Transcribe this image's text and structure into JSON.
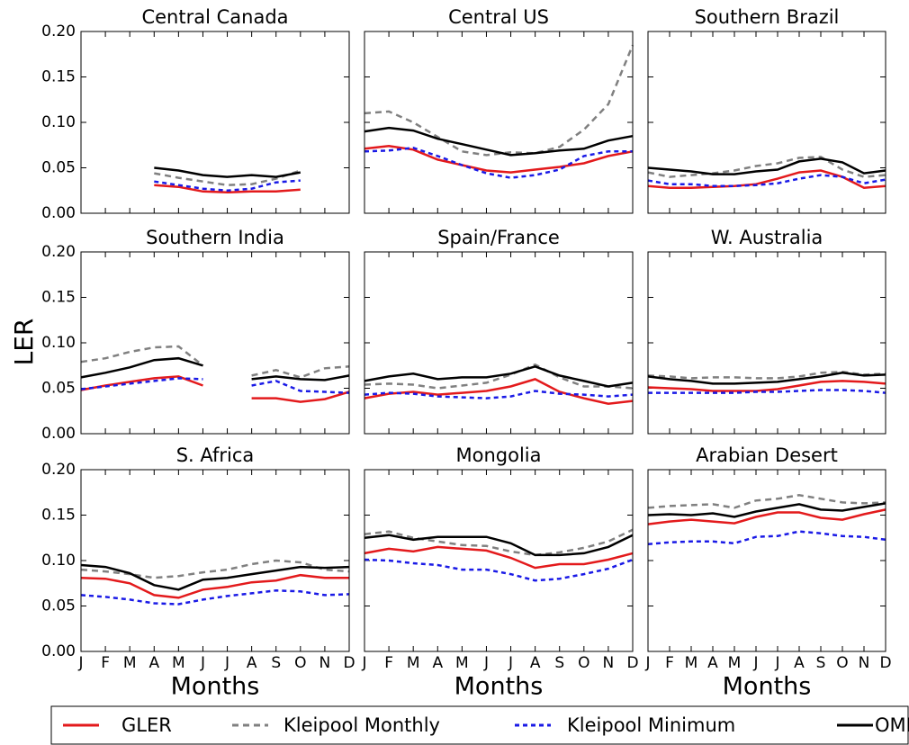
{
  "ylabel": "LER",
  "legend": [
    {
      "name": "GLER",
      "color": "#e31a1c",
      "style": "solid"
    },
    {
      "name": "Kleipool Monthly",
      "color": "#808080",
      "style": "dashed"
    },
    {
      "name": "Kleipool Minimum",
      "color": "#1a1ae6",
      "style": "dotted"
    },
    {
      "name": "OMI",
      "color": "#000000",
      "style": "solid"
    }
  ],
  "chart_data": [
    {
      "type": "line",
      "title": "Central Canada",
      "ylim": [
        0,
        0.2
      ],
      "yticks": [
        {
          "value": 0,
          "label": "0.00"
        },
        0.05,
        {
          "value": 0.1,
          "label": "0.10"
        },
        0.15,
        {
          "value": 0.2,
          "label": "0.20"
        }
      ],
      "series": [
        {
          "values": [
            null,
            null,
            null,
            0.031,
            0.029,
            0.024,
            0.023,
            0.024,
            0.024,
            0.026,
            null,
            null
          ]
        },
        {
          "values": [
            null,
            null,
            null,
            0.044,
            0.039,
            0.035,
            0.031,
            0.032,
            0.038,
            0.047,
            null,
            null
          ]
        },
        {
          "values": [
            null,
            null,
            null,
            0.035,
            0.031,
            0.027,
            0.025,
            0.027,
            0.034,
            0.036,
            null,
            null
          ]
        },
        {
          "values": [
            null,
            null,
            null,
            0.05,
            0.047,
            0.042,
            0.04,
            0.042,
            0.04,
            0.045,
            null,
            null
          ]
        }
      ]
    },
    {
      "type": "line",
      "title": "Central US",
      "ylim": [
        0,
        0.2
      ],
      "yticks": [
        0,
        0.05,
        0.1,
        0.15,
        0.2
      ],
      "series": [
        {
          "values": [
            0.071,
            0.074,
            0.07,
            0.059,
            0.053,
            0.047,
            0.045,
            0.048,
            0.051,
            0.055,
            0.063,
            0.068
          ]
        },
        {
          "values": [
            0.11,
            0.112,
            0.1,
            0.084,
            0.068,
            0.064,
            0.067,
            0.066,
            0.073,
            0.092,
            0.12,
            0.185
          ]
        },
        {
          "values": [
            0.068,
            0.069,
            0.072,
            0.063,
            0.053,
            0.044,
            0.039,
            0.042,
            0.048,
            0.063,
            0.068,
            0.068
          ]
        },
        {
          "values": [
            0.09,
            0.094,
            0.091,
            0.082,
            0.076,
            0.07,
            0.064,
            0.066,
            0.069,
            0.071,
            0.08,
            0.085
          ]
        }
      ]
    },
    {
      "type": "line",
      "title": "Southern Brazil",
      "ylim": [
        0,
        0.2
      ],
      "yticks": [
        0,
        0.05,
        0.1,
        0.15,
        0.2
      ],
      "series": [
        {
          "values": [
            0.03,
            0.028,
            0.028,
            0.029,
            0.03,
            0.032,
            0.038,
            0.045,
            0.047,
            0.04,
            0.028,
            0.03
          ]
        },
        {
          "values": [
            0.045,
            0.04,
            0.042,
            0.044,
            0.047,
            0.052,
            0.055,
            0.061,
            0.062,
            0.048,
            0.04,
            0.042
          ]
        },
        {
          "values": [
            0.036,
            0.032,
            0.032,
            0.03,
            0.03,
            0.031,
            0.033,
            0.038,
            0.042,
            0.04,
            0.033,
            0.037
          ]
        },
        {
          "values": [
            0.05,
            0.048,
            0.046,
            0.043,
            0.043,
            0.046,
            0.048,
            0.057,
            0.06,
            0.056,
            0.044,
            0.047
          ]
        }
      ]
    },
    {
      "type": "line",
      "title": "Southern India",
      "ylim": [
        0,
        0.2
      ],
      "yticks": [
        {
          "value": 0,
          "label": "0.00"
        },
        0.05,
        {
          "value": 0.1,
          "label": "0.10"
        },
        0.15,
        {
          "value": 0.2,
          "label": "0.20"
        }
      ],
      "series": [
        {
          "values": [
            0.048,
            0.053,
            0.057,
            0.061,
            0.063,
            0.053,
            null,
            0.039,
            0.039,
            0.035,
            0.038,
            0.046
          ]
        },
        {
          "values": [
            0.079,
            0.083,
            0.09,
            0.095,
            0.096,
            0.075,
            null,
            0.064,
            0.07,
            0.062,
            0.072,
            0.074
          ]
        },
        {
          "values": [
            0.049,
            0.052,
            0.055,
            0.058,
            0.061,
            0.06,
            null,
            0.053,
            0.058,
            0.047,
            0.046,
            0.045
          ]
        },
        {
          "values": [
            0.062,
            0.067,
            0.073,
            0.081,
            0.083,
            0.075,
            null,
            0.06,
            0.063,
            0.06,
            0.059,
            0.064
          ]
        }
      ]
    },
    {
      "type": "line",
      "title": "Spain/France",
      "ylim": [
        0,
        0.2
      ],
      "yticks": [
        0,
        0.05,
        0.1,
        0.15,
        0.2
      ],
      "series": [
        {
          "values": [
            0.039,
            0.044,
            0.046,
            0.043,
            0.045,
            0.047,
            0.052,
            0.06,
            0.046,
            0.039,
            0.033,
            0.036
          ]
        },
        {
          "values": [
            0.054,
            0.055,
            0.054,
            0.05,
            0.053,
            0.056,
            0.065,
            0.076,
            0.062,
            0.052,
            0.052,
            0.05
          ]
        },
        {
          "values": [
            0.043,
            0.045,
            0.044,
            0.041,
            0.04,
            0.039,
            0.041,
            0.047,
            0.044,
            0.043,
            0.041,
            0.043
          ]
        },
        {
          "values": [
            0.058,
            0.063,
            0.066,
            0.06,
            0.062,
            0.062,
            0.066,
            0.074,
            0.064,
            0.058,
            0.052,
            0.056
          ]
        }
      ]
    },
    {
      "type": "line",
      "title": "W. Australia",
      "ylim": [
        0,
        0.2
      ],
      "yticks": [
        0,
        0.05,
        0.1,
        0.15,
        0.2
      ],
      "series": [
        {
          "values": [
            0.051,
            0.05,
            0.049,
            0.047,
            0.047,
            0.047,
            0.049,
            0.053,
            0.057,
            0.058,
            0.057,
            0.055
          ]
        },
        {
          "values": [
            0.064,
            0.063,
            0.061,
            0.062,
            0.062,
            0.061,
            0.061,
            0.063,
            0.067,
            0.068,
            0.065,
            0.066
          ]
        },
        {
          "values": [
            0.045,
            0.045,
            0.045,
            0.045,
            0.045,
            0.046,
            0.046,
            0.047,
            0.048,
            0.048,
            0.047,
            0.045
          ]
        },
        {
          "values": [
            0.063,
            0.06,
            0.058,
            0.055,
            0.055,
            0.056,
            0.057,
            0.06,
            0.063,
            0.067,
            0.064,
            0.065
          ]
        }
      ]
    },
    {
      "type": "line",
      "title": "S. Africa",
      "ylim": [
        0,
        0.2
      ],
      "yticks": [
        {
          "value": 0,
          "label": "0.00"
        },
        0.05,
        {
          "value": 0.1,
          "label": "0.10"
        },
        0.15,
        {
          "value": 0.2,
          "label": "0.20"
        }
      ],
      "categories": [
        "J",
        "F",
        "M",
        "A",
        "M",
        "J",
        "J",
        "A",
        "S",
        "O",
        "N",
        "D"
      ],
      "xlabel": "Months",
      "series": [
        {
          "values": [
            0.081,
            0.08,
            0.075,
            0.062,
            0.059,
            0.068,
            0.071,
            0.076,
            0.078,
            0.084,
            0.081,
            0.081
          ]
        },
        {
          "values": [
            0.09,
            0.088,
            0.085,
            0.081,
            0.083,
            0.087,
            0.09,
            0.096,
            0.1,
            0.098,
            0.09,
            0.088
          ]
        },
        {
          "values": [
            0.062,
            0.06,
            0.057,
            0.053,
            0.052,
            0.057,
            0.061,
            0.064,
            0.067,
            0.066,
            0.062,
            0.063
          ]
        },
        {
          "values": [
            0.095,
            0.093,
            0.086,
            0.073,
            0.068,
            0.079,
            0.081,
            0.085,
            0.089,
            0.093,
            0.092,
            0.093
          ]
        }
      ]
    },
    {
      "type": "line",
      "title": "Mongolia",
      "ylim": [
        0,
        0.2
      ],
      "yticks": [
        0,
        0.05,
        0.1,
        0.15,
        0.2
      ],
      "categories": [
        "J",
        "F",
        "M",
        "A",
        "M",
        "J",
        "J",
        "A",
        "S",
        "O",
        "N",
        "D"
      ],
      "xlabel": "Months",
      "series": [
        {
          "values": [
            0.108,
            0.113,
            0.11,
            0.115,
            0.113,
            0.111,
            0.103,
            0.092,
            0.096,
            0.096,
            0.101,
            0.108
          ]
        },
        {
          "values": [
            0.129,
            0.132,
            0.125,
            0.121,
            0.117,
            0.116,
            0.11,
            0.106,
            0.109,
            0.114,
            0.121,
            0.134
          ]
        },
        {
          "values": [
            0.101,
            0.1,
            0.097,
            0.095,
            0.09,
            0.09,
            0.085,
            0.078,
            0.08,
            0.085,
            0.091,
            0.101
          ]
        },
        {
          "values": [
            0.125,
            0.128,
            0.123,
            0.126,
            0.126,
            0.126,
            0.119,
            0.106,
            0.106,
            0.108,
            0.115,
            0.128
          ]
        }
      ]
    },
    {
      "type": "line",
      "title": "Arabian Desert",
      "ylim": [
        0,
        0.2
      ],
      "yticks": [
        0,
        0.05,
        0.1,
        0.15,
        0.2
      ],
      "categories": [
        "J",
        "F",
        "M",
        "A",
        "M",
        "J",
        "J",
        "A",
        "S",
        "O",
        "N",
        "D"
      ],
      "xlabel": "Months",
      "series": [
        {
          "values": [
            0.14,
            0.143,
            0.145,
            0.143,
            0.141,
            0.148,
            0.153,
            0.153,
            0.147,
            0.145,
            0.151,
            0.156
          ]
        },
        {
          "values": [
            0.158,
            0.16,
            0.161,
            0.162,
            0.158,
            0.166,
            0.168,
            0.172,
            0.168,
            0.164,
            0.163,
            0.164
          ]
        },
        {
          "values": [
            0.118,
            0.12,
            0.121,
            0.121,
            0.119,
            0.126,
            0.127,
            0.132,
            0.13,
            0.127,
            0.126,
            0.123
          ]
        },
        {
          "values": [
            0.15,
            0.151,
            0.15,
            0.152,
            0.148,
            0.154,
            0.158,
            0.162,
            0.156,
            0.155,
            0.159,
            0.163
          ]
        }
      ]
    }
  ]
}
